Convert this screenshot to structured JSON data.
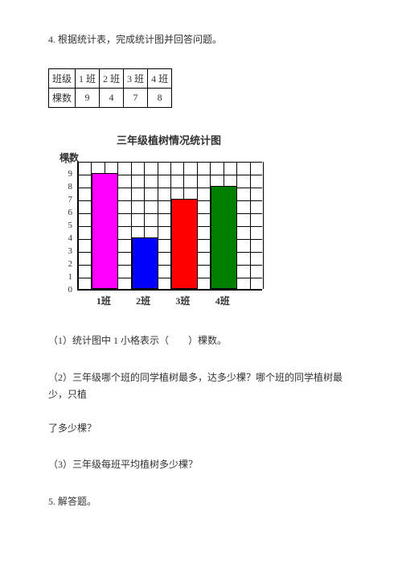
{
  "prompt": "4. 根据统计表，完成统计图并回答问题。",
  "table": {
    "row1": {
      "hdr": "班级",
      "c1": "1 班",
      "c2": "2 班",
      "c3": "3 班",
      "c4": "4 班"
    },
    "row2": {
      "hdr": "棵数",
      "c1": "9",
      "c2": "4",
      "c3": "7",
      "c4": "8"
    }
  },
  "chart": {
    "title": "三年级植树情况统计图",
    "ylabel": "棵数",
    "ymax": 10,
    "yticks": [
      "10",
      "9",
      "8",
      "7",
      "6",
      "5",
      "4",
      "3",
      "2",
      "1",
      "0"
    ],
    "categories": [
      "1班",
      "2班",
      "3班",
      "4班"
    ],
    "values": [
      9,
      4,
      7,
      8
    ],
    "bar_colors": [
      "#ff00ff",
      "#0000ff",
      "#ff0000",
      "#008000"
    ],
    "bar_width_cells": 2,
    "plot_width_cells": 14,
    "plot_height_cells": 10,
    "grid_color": "#000000",
    "background_color": "#ffffff"
  },
  "questions": {
    "q1_a": "（1）统计图中 1 小格表示（",
    "q1_b": "）棵数。",
    "q2_a": "（2）三年级哪个班的同学植树最多，达多少棵？哪个班的同学植树最少，只植",
    "q2_b": "了多少棵？",
    "q3": "（3）三年级每班平均植树多少棵？",
    "q5": "5. 解答题。"
  }
}
